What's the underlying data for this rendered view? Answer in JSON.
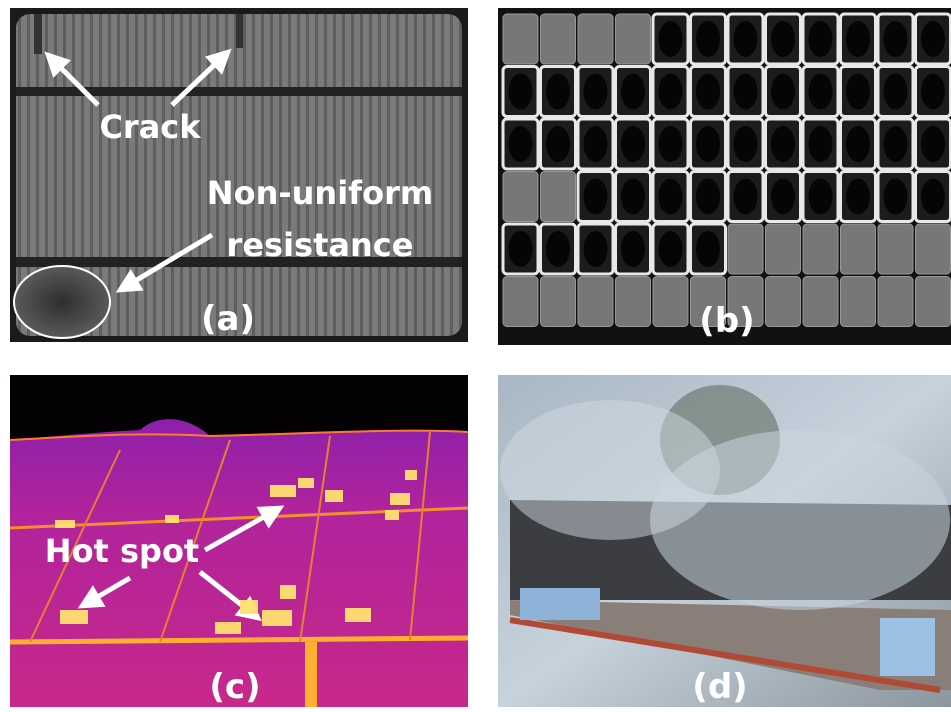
{
  "panels": [
    {
      "label": "(a)",
      "annotations": [
        "Crack",
        "Non-uniform",
        "resistance"
      ]
    },
    {
      "label": "(b)"
    },
    {
      "label": "(c)",
      "annotations": [
        "Hot spot"
      ]
    },
    {
      "label": "(d)"
    }
  ]
}
